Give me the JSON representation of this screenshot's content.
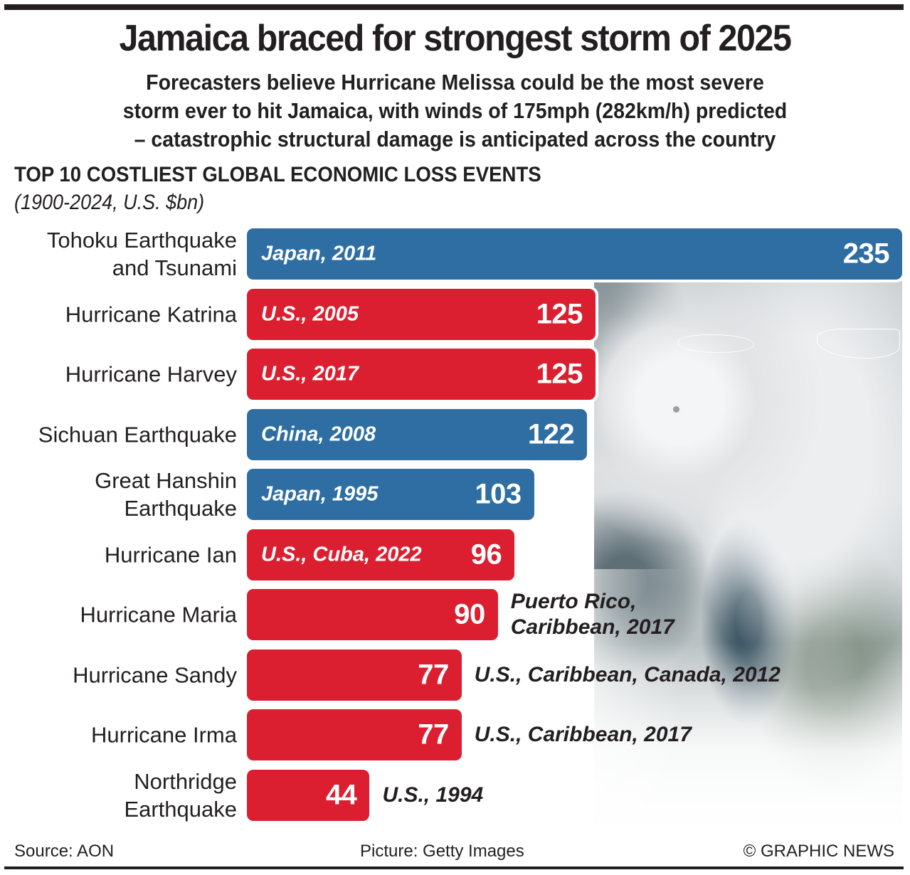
{
  "header": {
    "title": "Jamaica braced for strongest storm of 2025",
    "subtitle_lines": [
      "Forecasters believe Hurricane Melissa could be the most severe",
      "storm ever to hit Jamaica, with winds of 175mph (282km/h) predicted",
      "– catastrophic structural damage is anticipated across the country"
    ]
  },
  "chart_data": {
    "type": "bar",
    "orientation": "horizontal",
    "title": "TOP 10 COSTLIEST GLOBAL ECONOMIC LOSS EVENTS",
    "subtitle": "(1900-2024, U.S. $bn)",
    "xlabel": "",
    "ylabel": "",
    "xlim": [
      0,
      235
    ],
    "grid": false,
    "legend": "none",
    "colors": {
      "earthquake": "#2e6ea3",
      "hurricane": "#dc1f30"
    },
    "categories": [
      "Tohoku Earthquake and Tsunami",
      "Hurricane Katrina",
      "Hurricane Harvey",
      "Sichuan Earthquake",
      "Great Hanshin Earthquake",
      "Hurricane Ian",
      "Hurricane Maria",
      "Hurricane Sandy",
      "Hurricane Irma",
      "Northridge Earthquake"
    ],
    "values": [
      235,
      125,
      125,
      122,
      103,
      96,
      90,
      77,
      77,
      44
    ],
    "bars": [
      {
        "label_lines": [
          "Tohoku Earthquake",
          "and Tsunami"
        ],
        "value": 235,
        "value_text": "235",
        "type": "earthquake",
        "note_lines": [
          "Japan, 2011"
        ],
        "note_inside": true
      },
      {
        "label_lines": [
          "Hurricane Katrina"
        ],
        "value": 125,
        "value_text": "125",
        "type": "hurricane",
        "note_lines": [
          "U.S., 2005"
        ],
        "note_inside": true
      },
      {
        "label_lines": [
          "Hurricane Harvey"
        ],
        "value": 125,
        "value_text": "125",
        "type": "hurricane",
        "note_lines": [
          "U.S., 2017"
        ],
        "note_inside": true
      },
      {
        "label_lines": [
          "Sichuan Earthquake"
        ],
        "value": 122,
        "value_text": "122",
        "type": "earthquake",
        "note_lines": [
          "China, 2008"
        ],
        "note_inside": true
      },
      {
        "label_lines": [
          "Great Hanshin",
          "Earthquake"
        ],
        "value": 103,
        "value_text": "103",
        "type": "earthquake",
        "note_lines": [
          "Japan, 1995"
        ],
        "note_inside": true
      },
      {
        "label_lines": [
          "Hurricane Ian"
        ],
        "value": 96,
        "value_text": "96",
        "type": "hurricane",
        "note_lines": [
          "U.S., Cuba, 2022"
        ],
        "note_inside": true
      },
      {
        "label_lines": [
          "Hurricane Maria"
        ],
        "value": 90,
        "value_text": "90",
        "type": "hurricane",
        "note_lines": [
          "Puerto Rico,",
          "Caribbean, 2017"
        ],
        "note_inside": false
      },
      {
        "label_lines": [
          "Hurricane Sandy"
        ],
        "value": 77,
        "value_text": "77",
        "type": "hurricane",
        "note_lines": [
          "U.S., Caribbean, Canada, 2012"
        ],
        "note_inside": false
      },
      {
        "label_lines": [
          "Hurricane Irma"
        ],
        "value": 77,
        "value_text": "77",
        "type": "hurricane",
        "note_lines": [
          "U.S., Caribbean, 2017"
        ],
        "note_inside": false
      },
      {
        "label_lines": [
          "Northridge",
          "Earthquake"
        ],
        "value": 44,
        "value_text": "44",
        "type": "earthquake_red",
        "note_lines": [
          "U.S., 1994"
        ],
        "note_inside": false
      }
    ],
    "annotations": [
      "Picture: satellite image of Hurricane Melissa near Jamaica"
    ]
  },
  "footer": {
    "source": "Source: AON",
    "picture": "Picture: Getty Images",
    "credit": "© GRAPHIC NEWS"
  }
}
